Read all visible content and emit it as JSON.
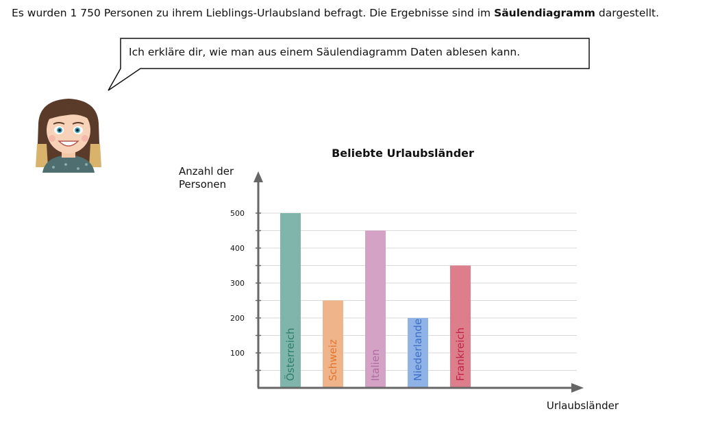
{
  "intro": {
    "before": "Es wurden 1 750 Personen zu ihrem Lieblings-Urlaubsland befragt. Die Ergebnisse sind im ",
    "bold": "Säulendiagramm",
    "after": " dargestellt."
  },
  "speech_bubble": "Ich erkläre dir, wie man aus einem Säulendiagramm Daten ablesen kann.",
  "chart_data": {
    "type": "bar",
    "title": "Beliebte Urlaubsländer",
    "ylabel_lines": [
      "Anzahl der",
      "Personen"
    ],
    "xlabel": "Urlaubsländer",
    "categories": [
      "Österreich",
      "Schweiz",
      "Italien",
      "Niederlande",
      "Frankreich"
    ],
    "values": [
      500,
      250,
      450,
      200,
      350
    ],
    "colors": [
      "#7fb5aa",
      "#f0b48a",
      "#d3a2c4",
      "#8fb3e6",
      "#dd7e8c"
    ],
    "label_colors": [
      "#2e7d6b",
      "#e2762e",
      "#b46aa5",
      "#3d6fc5",
      "#c0234a"
    ],
    "yticks": [
      100,
      200,
      300,
      400,
      500
    ],
    "ylim": [
      0,
      500
    ],
    "grid": true
  }
}
